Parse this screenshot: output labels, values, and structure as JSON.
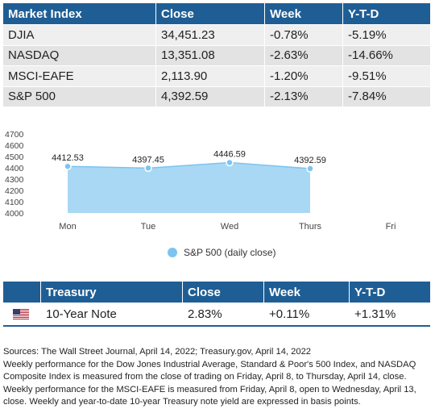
{
  "market_table": {
    "headers": [
      "Market Index",
      "Close",
      "Week",
      "Y-T-D"
    ],
    "rows": [
      [
        "DJIA",
        "34,451.23",
        "-0.78%",
        "-5.19%"
      ],
      [
        "NASDAQ",
        "13,351.08",
        "-2.63%",
        "-14.66%"
      ],
      [
        "MSCI-EAFE",
        "2,113.90",
        "-1.20%",
        "-9.51%"
      ],
      [
        "S&P 500",
        "4,392.59",
        "-2.13%",
        "-7.84%"
      ]
    ]
  },
  "chart_data": {
    "type": "area",
    "categories": [
      "Mon",
      "Tue",
      "Wed",
      "Thurs",
      "Fri"
    ],
    "series": [
      {
        "name": "S&P 500 (daily close)",
        "values": [
          4412.53,
          4397.45,
          4446.59,
          4392.59,
          null
        ]
      }
    ],
    "data_labels": [
      "4412.53",
      "4397.45",
      "4446.59",
      "4392.59"
    ],
    "ylim": [
      4000,
      4700
    ],
    "yticks": [
      "4700",
      "4600",
      "4500",
      "4400",
      "4300",
      "4200",
      "4100",
      "4000"
    ],
    "grid": false,
    "legend_position": "bottom",
    "colors": {
      "fill": "#a9d8f5",
      "line": "#7cc4f0",
      "marker": "#7cc4f0"
    }
  },
  "treasury_table": {
    "headers": [
      "Treasury",
      "Close",
      "Week",
      "Y-T-D"
    ],
    "row": {
      "name": "10-Year Note",
      "close": "2.83%",
      "week": "+0.11%",
      "ytd": "+1.31%"
    },
    "flag_icon": "us-flag-icon"
  },
  "notes": {
    "sources": "Sources: The Wall Street Journal, April 14, 2022; Treasury.gov, April 14, 2022",
    "body": "Weekly performance for the Dow Jones Industrial Average, Standard & Poor's 500 Index, and NASDAQ Composite Index is measured from the close of trading on Friday, April 8, to Thursday, April 14, close. Weekly performance for the MSCI-EAFE is measured from Friday, April 8, open to Wednesday, April 13, close. Weekly and year-to-date 10-year Treasury note yield are expressed in basis points."
  },
  "colors": {
    "header_bg": "#1f5e95",
    "header_text": "#ffffff"
  }
}
